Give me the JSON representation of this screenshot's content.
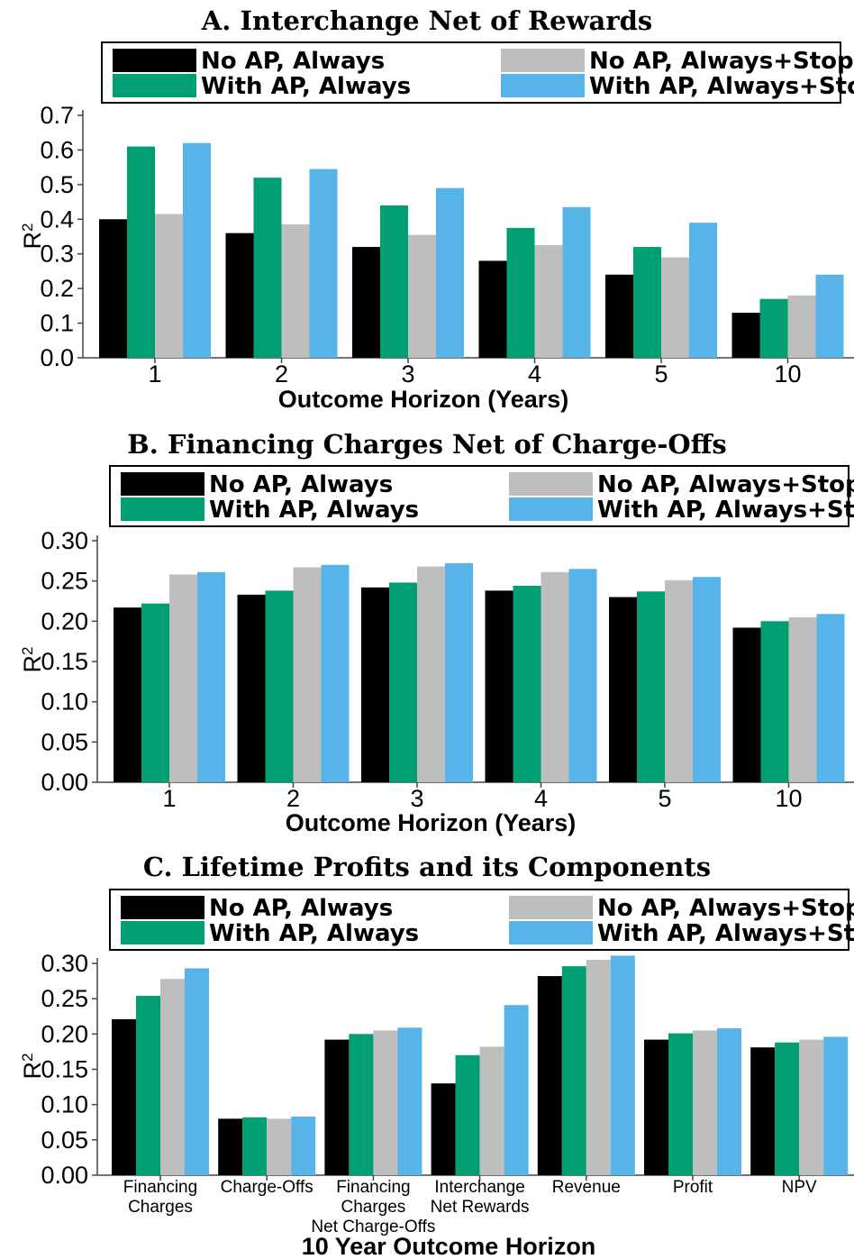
{
  "colors": {
    "no_ap_always": "#000000",
    "with_ap_always": "#009E73",
    "no_ap_always_stoppers": "#BEBEBE",
    "with_ap_always_stoppers": "#56B4E9"
  },
  "legend": {
    "no_ap_always": "No AP, Always",
    "with_ap_always": "With AP, Always",
    "no_ap_always_stoppers": "No AP, Always+Stoppers",
    "with_ap_always_stoppers": "With AP, Always+Stoppers"
  },
  "chart_data": [
    {
      "type": "bar",
      "title": "A. Interchange Net of Rewards",
      "xlabel": "Outcome Horizon (Years)",
      "ylabel": "R²",
      "ylim": [
        0,
        0.7
      ],
      "yticks": [
        "0.0",
        "0.1",
        "0.2",
        "0.3",
        "0.4",
        "0.5",
        "0.6",
        "0.7"
      ],
      "categories": [
        "1",
        "2",
        "3",
        "4",
        "5",
        "10"
      ],
      "legend_position": "top",
      "grid": false,
      "series": [
        {
          "name": "No AP, Always",
          "values": [
            0.4,
            0.36,
            0.32,
            0.28,
            0.24,
            0.13
          ]
        },
        {
          "name": "With AP, Always",
          "values": [
            0.61,
            0.52,
            0.44,
            0.375,
            0.32,
            0.17
          ]
        },
        {
          "name": "No AP, Always+Stoppers",
          "values": [
            0.415,
            0.385,
            0.355,
            0.325,
            0.29,
            0.18
          ]
        },
        {
          "name": "With AP, Always+Stoppers",
          "values": [
            0.62,
            0.545,
            0.49,
            0.435,
            0.39,
            0.24
          ]
        }
      ]
    },
    {
      "type": "bar",
      "title": "B. Financing Charges Net of Charge-Offs",
      "xlabel": "Outcome Horizon (Years)",
      "ylabel": "R²",
      "ylim": [
        0,
        0.3
      ],
      "yticks": [
        "0.00",
        "0.05",
        "0.10",
        "0.15",
        "0.20",
        "0.25",
        "0.30"
      ],
      "categories": [
        "1",
        "2",
        "3",
        "4",
        "5",
        "10"
      ],
      "legend_position": "top",
      "grid": false,
      "series": [
        {
          "name": "No AP, Always",
          "values": [
            0.217,
            0.233,
            0.242,
            0.238,
            0.23,
            0.192
          ]
        },
        {
          "name": "With AP, Always",
          "values": [
            0.222,
            0.238,
            0.248,
            0.244,
            0.237,
            0.2
          ]
        },
        {
          "name": "No AP, Always+Stoppers",
          "values": [
            0.258,
            0.267,
            0.268,
            0.261,
            0.251,
            0.205
          ]
        },
        {
          "name": "With AP, Always+Stoppers",
          "values": [
            0.261,
            0.27,
            0.272,
            0.265,
            0.255,
            0.209
          ]
        }
      ]
    },
    {
      "type": "bar",
      "title": "C. Lifetime Profits and its Components",
      "xlabel": "10 Year Outcome Horizon",
      "ylabel": "R²",
      "ylim": [
        0,
        0.3
      ],
      "yticks": [
        "0.00",
        "0.05",
        "0.10",
        "0.15",
        "0.20",
        "0.25",
        "0.30"
      ],
      "categories": [
        [
          "Financing",
          "Charges"
        ],
        [
          "Charge-Offs"
        ],
        [
          "Financing",
          "Charges",
          "Net Charge-Offs"
        ],
        [
          "Interchange",
          "Net Rewards"
        ],
        [
          "Revenue"
        ],
        [
          "Profit"
        ],
        [
          "NPV"
        ]
      ],
      "legend_position": "top",
      "grid": false,
      "series": [
        {
          "name": "No AP, Always",
          "values": [
            0.221,
            0.08,
            0.192,
            0.13,
            0.282,
            0.192,
            0.181
          ]
        },
        {
          "name": "With AP, Always",
          "values": [
            0.254,
            0.082,
            0.2,
            0.17,
            0.296,
            0.201,
            0.188
          ]
        },
        {
          "name": "No AP, Always+Stoppers",
          "values": [
            0.278,
            0.08,
            0.205,
            0.182,
            0.305,
            0.205,
            0.192
          ]
        },
        {
          "name": "With AP, Always+Stoppers",
          "values": [
            0.293,
            0.083,
            0.209,
            0.241,
            0.311,
            0.208,
            0.196
          ]
        }
      ]
    }
  ]
}
